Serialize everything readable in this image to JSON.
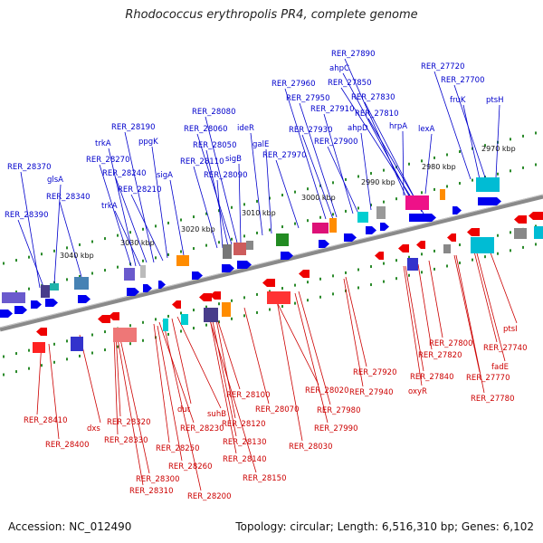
{
  "title": "Rhodococcus erythropolis PR4, complete genome",
  "footer": {
    "accession": "Accession: NC_012490",
    "summary": "Topology: circular; Length: 6,516,310 bp; Genes: 6,102"
  },
  "ticks": [
    "2970 kbp",
    "2980 kbp",
    "2990 kbp",
    "3000 kbp",
    "3010 kbp",
    "3020 kbp",
    "3030 kbp",
    "3040 kbp"
  ],
  "forward_labels": [
    "RER_27890",
    "ahpC",
    "RER_27850",
    "RER_27830",
    "RER_27810",
    "hrpA",
    "lexA",
    "RER_27720",
    "RER_27700",
    "fruK",
    "ptsH",
    "RER_27960",
    "RER_27950",
    "RER_27910",
    "RER_27930",
    "ahpD",
    "RER_27900",
    "RER_27970",
    "galE",
    "ideR",
    "RER_28080",
    "RER_28060",
    "RER_28050",
    "RER_28110",
    "RER_28090",
    "sigB",
    "RER_28190",
    "ppgK",
    "trkA",
    "RER_28270",
    "RER_28240",
    "sigA",
    "RER_28210",
    "trkA",
    "RER_28370",
    "glsA",
    "RER_28340",
    "RER_28390"
  ],
  "reverse_labels": [
    "RER_28410",
    "RER_28400",
    "dxs",
    "RER_28320",
    "RER_28330",
    "RER_28300",
    "RER_28310",
    "RER_28230",
    "dut",
    "suhB",
    "RER_28250",
    "RER_28260",
    "RER_28200",
    "RER_28100",
    "RER_28120",
    "RER_28130",
    "RER_28140",
    "RER_28150",
    "RER_28070",
    "RER_28020",
    "RER_28030",
    "RER_27980",
    "RER_27990",
    "RER_27920",
    "RER_27940",
    "oxyR",
    "RER_27840",
    "RER_27820",
    "RER_27800",
    "RER_27770",
    "RER_27780",
    "fadE",
    "RER_27740",
    "ptsI"
  ],
  "colors": {
    "forward": "#0000cc",
    "reverse": "#cc0000",
    "backbone": "#777777",
    "tick": "#1a8a1a"
  }
}
